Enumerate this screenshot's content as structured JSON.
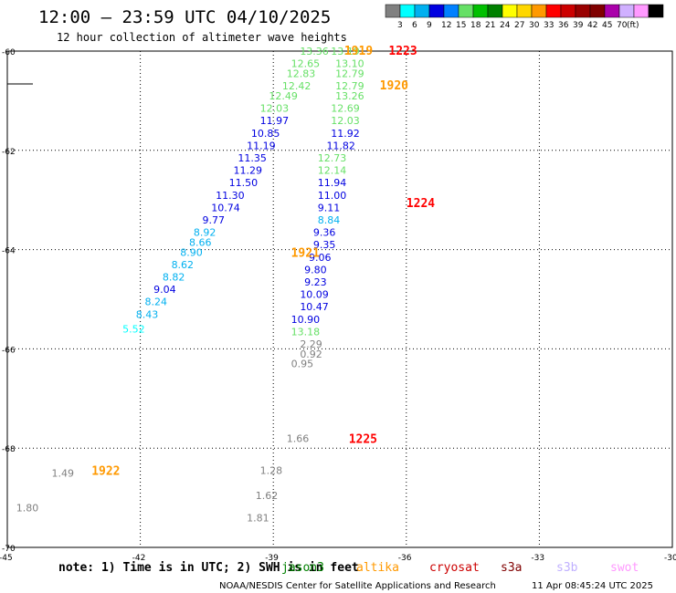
{
  "header": {
    "title": "12:00 – 23:59 UTC 04/10/2025",
    "subtitle": "12 hour collection of altimeter wave heights"
  },
  "legend": {
    "colors": [
      "#808080",
      "#00ffff",
      "#00b0f0",
      "#0000e0",
      "#0080ff",
      "#66e066",
      "#00c000",
      "#008000",
      "#ffff00",
      "#ffd700",
      "#ff9900",
      "#ff0000",
      "#cc0000",
      "#990000",
      "#800000",
      "#aa00aa",
      "#d0b0ff",
      "#ff99ff",
      "#000000"
    ],
    "ticks": [
      "3",
      "6",
      "9",
      "12",
      "15",
      "18",
      "21",
      "24",
      "27",
      "30",
      "33",
      "36",
      "39",
      "42",
      "45",
      "70"
    ],
    "unit": "(ft)"
  },
  "chart_data": {
    "type": "scatter",
    "xlim": [
      -45,
      -30
    ],
    "ylim": [
      -70,
      -60
    ],
    "x_ticks": [
      "-45",
      "-42",
      "-39",
      "-36",
      "-33",
      "-30"
    ],
    "y_ticks": [
      "-60",
      "-62",
      "-64",
      "-66",
      "-68",
      "-70"
    ],
    "grid": true,
    "points": [
      {
        "x": -38.4,
        "y": -60.0,
        "v": "13.36",
        "c": "#66e066"
      },
      {
        "x": -38.6,
        "y": -60.25,
        "v": "12.65",
        "c": "#66e066"
      },
      {
        "x": -38.7,
        "y": -60.45,
        "v": "12.83",
        "c": "#66e066"
      },
      {
        "x": -38.8,
        "y": -60.7,
        "v": "12.42",
        "c": "#66e066"
      },
      {
        "x": -39.1,
        "y": -60.9,
        "v": "12.49",
        "c": "#66e066"
      },
      {
        "x": -39.3,
        "y": -61.15,
        "v": "12.03",
        "c": "#66e066"
      },
      {
        "x": -39.3,
        "y": -61.4,
        "v": "11.97",
        "c": "#0000e0"
      },
      {
        "x": -39.5,
        "y": -61.65,
        "v": "10.85",
        "c": "#0000e0"
      },
      {
        "x": -39.6,
        "y": -61.9,
        "v": "11.19",
        "c": "#0000e0"
      },
      {
        "x": -39.8,
        "y": -62.15,
        "v": "11.35",
        "c": "#0000e0"
      },
      {
        "x": -39.9,
        "y": -62.4,
        "v": "11.29",
        "c": "#0000e0"
      },
      {
        "x": -40.0,
        "y": -62.65,
        "v": "11.50",
        "c": "#0000e0"
      },
      {
        "x": -40.3,
        "y": -62.9,
        "v": "11.30",
        "c": "#0000e0"
      },
      {
        "x": -40.4,
        "y": -63.15,
        "v": "10.74",
        "c": "#0000e0"
      },
      {
        "x": -40.6,
        "y": -63.4,
        "v": "9.77",
        "c": "#0000e0"
      },
      {
        "x": -40.8,
        "y": -63.65,
        "v": "8.92",
        "c": "#00b0f0"
      },
      {
        "x": -40.9,
        "y": -63.85,
        "v": "8.66",
        "c": "#00b0f0"
      },
      {
        "x": -41.1,
        "y": -64.05,
        "v": "8.90",
        "c": "#00b0f0"
      },
      {
        "x": -41.3,
        "y": -64.3,
        "v": "8.62",
        "c": "#00b0f0"
      },
      {
        "x": -41.5,
        "y": -64.55,
        "v": "8.82",
        "c": "#00b0f0"
      },
      {
        "x": -41.7,
        "y": -64.8,
        "v": "9.04",
        "c": "#0000e0"
      },
      {
        "x": -41.9,
        "y": -65.05,
        "v": "8.24",
        "c": "#00b0f0"
      },
      {
        "x": -42.1,
        "y": -65.3,
        "v": "8.43",
        "c": "#00b0f0"
      },
      {
        "x": -42.4,
        "y": -65.6,
        "v": "5.52",
        "c": "#00ffff"
      },
      {
        "x": -37.7,
        "y": -60.0,
        "v": "13.19",
        "c": "#66e066"
      },
      {
        "x": -37.6,
        "y": -60.25,
        "v": "13.10",
        "c": "#66e066"
      },
      {
        "x": -37.6,
        "y": -60.45,
        "v": "12.79",
        "c": "#66e066"
      },
      {
        "x": -37.6,
        "y": -60.7,
        "v": "12.79",
        "c": "#66e066"
      },
      {
        "x": -37.6,
        "y": -60.9,
        "v": "13.26",
        "c": "#66e066"
      },
      {
        "x": -37.7,
        "y": -61.15,
        "v": "12.69",
        "c": "#66e066"
      },
      {
        "x": -37.7,
        "y": -61.4,
        "v": "12.03",
        "c": "#66e066"
      },
      {
        "x": -37.7,
        "y": -61.65,
        "v": "11.92",
        "c": "#0000e0"
      },
      {
        "x": -37.8,
        "y": -61.9,
        "v": "11.82",
        "c": "#0000e0"
      },
      {
        "x": -38.0,
        "y": -62.15,
        "v": "12.73",
        "c": "#66e066"
      },
      {
        "x": -38.0,
        "y": -62.4,
        "v": "12.14",
        "c": "#66e066"
      },
      {
        "x": -38.0,
        "y": -62.65,
        "v": "11.94",
        "c": "#0000e0"
      },
      {
        "x": -38.0,
        "y": -62.9,
        "v": "11.00",
        "c": "#0000e0"
      },
      {
        "x": -38.0,
        "y": -63.15,
        "v": "9.11",
        "c": "#0000e0"
      },
      {
        "x": -38.0,
        "y": -63.4,
        "v": "8.84",
        "c": "#00b0f0"
      },
      {
        "x": -38.1,
        "y": -63.65,
        "v": "9.36",
        "c": "#0000e0"
      },
      {
        "x": -38.1,
        "y": -63.9,
        "v": "9.35",
        "c": "#0000e0"
      },
      {
        "x": -38.2,
        "y": -64.15,
        "v": "9.06",
        "c": "#0000e0"
      },
      {
        "x": -38.3,
        "y": -64.4,
        "v": "9.80",
        "c": "#0000e0"
      },
      {
        "x": -38.3,
        "y": -64.65,
        "v": "9.23",
        "c": "#0000e0"
      },
      {
        "x": -38.4,
        "y": -64.9,
        "v": "10.09",
        "c": "#0000e0"
      },
      {
        "x": -38.4,
        "y": -65.15,
        "v": "10.47",
        "c": "#0000e0"
      },
      {
        "x": -38.6,
        "y": -65.4,
        "v": "10.90",
        "c": "#0000e0"
      },
      {
        "x": -38.6,
        "y": -65.65,
        "v": "13.18",
        "c": "#66e066"
      },
      {
        "x": -38.4,
        "y": -65.9,
        "v": "2.29",
        "c": "#808080"
      },
      {
        "x": -38.4,
        "y": -66.1,
        "v": "0.92",
        "c": "#808080"
      },
      {
        "x": -38.6,
        "y": -66.3,
        "v": "0.95",
        "c": "#808080"
      },
      {
        "x": -38.7,
        "y": -67.8,
        "v": "1.66",
        "c": "#808080"
      },
      {
        "x": -39.3,
        "y": -68.45,
        "v": "1.28",
        "c": "#808080"
      },
      {
        "x": -39.4,
        "y": -68.95,
        "v": "1.62",
        "c": "#808080"
      },
      {
        "x": -39.6,
        "y": -69.4,
        "v": "1.81",
        "c": "#808080"
      },
      {
        "x": -44.0,
        "y": -68.5,
        "v": "1.49",
        "c": "#808080"
      },
      {
        "x": -44.8,
        "y": -69.2,
        "v": "1.80",
        "c": "#808080"
      }
    ],
    "pass_labels": [
      {
        "x": -37.4,
        "y": -59.98,
        "v": "1919",
        "c": "#ff9900"
      },
      {
        "x": -36.4,
        "y": -59.98,
        "v": "1223",
        "c": "#ff0000"
      },
      {
        "x": -36.6,
        "y": -60.68,
        "v": "1920",
        "c": "#ff9900"
      },
      {
        "x": -36.0,
        "y": -63.05,
        "v": "1224",
        "c": "#ff0000"
      },
      {
        "x": -38.6,
        "y": -64.05,
        "v": "1921",
        "c": "#ff9900"
      },
      {
        "x": -37.3,
        "y": -67.8,
        "v": "1225",
        "c": "#ff0000"
      },
      {
        "x": -43.1,
        "y": -68.45,
        "v": "1922",
        "c": "#ff9900"
      }
    ]
  },
  "note": {
    "text": "note: 1) Time is in UTC; 2) SWH is in feet",
    "satellites": [
      {
        "name": "jason3",
        "color": "#008000"
      },
      {
        "name": "altika",
        "color": "#ff9900"
      },
      {
        "name": "cryosat",
        "color": "#cc0000"
      },
      {
        "name": "s3a",
        "color": "#800000"
      },
      {
        "name": "s3b",
        "color": "#c0b0ff"
      },
      {
        "name": "swot",
        "color": "#ff99ff"
      }
    ]
  },
  "footer": {
    "credit": "NOAA/NESDIS Center for Satellite Applications and Research",
    "timestamp": "11 Apr 08:45:24 UTC 2025"
  }
}
